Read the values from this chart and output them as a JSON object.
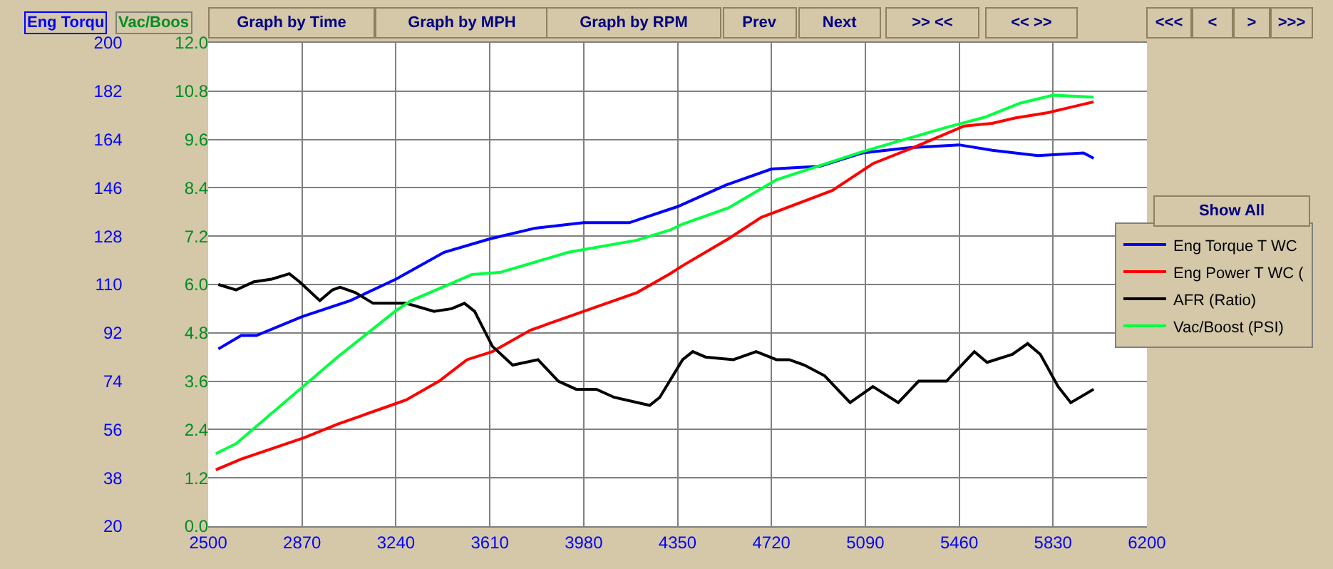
{
  "chart_data": {
    "type": "line",
    "ylabel": "Eng Torqu",
    "y2label": "Vac/Boos",
    "xlim": [
      2500,
      6200
    ],
    "xticks": [
      2500,
      2870,
      3240,
      3610,
      3980,
      4350,
      4720,
      5090,
      5460,
      5830,
      6200
    ],
    "ylim": [
      20,
      200
    ],
    "yticks": [
      20,
      38,
      56,
      74,
      92,
      110,
      128,
      146,
      164,
      182,
      200
    ],
    "y2lim": [
      0,
      12
    ],
    "y2ticks": [
      {
        "value": 0,
        "label": "0.0"
      },
      1.2,
      2.4,
      3.6,
      4.8,
      {
        "value": 6,
        "label": "6.0"
      },
      7.2,
      8.4,
      9.6,
      10.8,
      {
        "value": 12,
        "label": "12.0"
      }
    ],
    "grid": true,
    "legend": "right",
    "marker": "none",
    "line_style": "solid",
    "series": [
      {
        "name": "Eng Torque T WC",
        "color": "#0000ff",
        "x": [
          2540,
          2630,
          2690,
          2870,
          3060,
          3240,
          3430,
          3610,
          3790,
          3980,
          4160,
          4350,
          4540,
          4720,
          4910,
          5080,
          5270,
          5460,
          5590,
          5770,
          5950,
          5990
        ],
        "values": [
          86,
          91,
          91,
          98,
          104,
          112,
          122,
          127,
          131,
          133,
          133,
          139,
          147,
          153,
          154,
          159,
          161,
          162,
          160,
          158,
          159,
          157
        ]
      },
      {
        "name": "Eng Power T WC (",
        "color": "#ff0000",
        "x": [
          2530,
          2630,
          2880,
          3010,
          3190,
          3280,
          3410,
          3520,
          3620,
          3770,
          4010,
          4190,
          4320,
          4370,
          4550,
          4680,
          4960,
          5120,
          5280,
          5480,
          5590,
          5680,
          5810,
          5900,
          5990
        ],
        "values": [
          41,
          45,
          53,
          58,
          64,
          67,
          74,
          82,
          85,
          93,
          101,
          107,
          114,
          117,
          127,
          135,
          145,
          155,
          161,
          169,
          170,
          172,
          174,
          176,
          178
        ]
      },
      {
        "name": "AFR (Ratio)",
        "color": "#000000",
        "x": [
          2540,
          2610,
          2680,
          2750,
          2820,
          2860,
          2940,
          2990,
          3020,
          3080,
          3150,
          3280,
          3390,
          3460,
          3510,
          3550,
          3620,
          3700,
          3800,
          3880,
          3950,
          4030,
          4100,
          4240,
          4280,
          4370,
          4410,
          4460,
          4570,
          4660,
          4740,
          4790,
          4850,
          4930,
          5030,
          5120,
          5220,
          5300,
          5410,
          5520,
          5570,
          5670,
          5730,
          5780,
          5850,
          5900,
          5990
        ],
        "values": [
          110,
          108,
          111,
          112,
          114,
          111,
          104,
          108,
          109,
          107,
          103,
          103,
          100,
          101,
          103,
          100,
          87,
          80,
          82,
          74,
          71,
          71,
          68,
          65,
          68,
          82,
          85,
          83,
          82,
          85,
          82,
          82,
          80,
          76,
          66,
          72,
          66,
          74,
          74,
          85,
          81,
          84,
          88,
          84,
          72,
          66,
          71
        ]
      },
      {
        "name": "Vac/Boost (PSI)",
        "color": "#00ff40",
        "axis": "y2",
        "x": [
          2530,
          2610,
          2880,
          3010,
          3240,
          3300,
          3540,
          3650,
          3920,
          4190,
          4320,
          4370,
          4550,
          4740,
          5080,
          5410,
          5560,
          5700,
          5830,
          5990
        ],
        "values": [
          1.8,
          2.05,
          3.5,
          4.2,
          5.35,
          5.6,
          6.25,
          6.3,
          6.8,
          7.1,
          7.35,
          7.5,
          7.9,
          8.6,
          9.3,
          9.9,
          10.15,
          10.5,
          10.7,
          10.65
        ]
      }
    ],
    "annotations": [
      "Graph by Time",
      "Graph by MPH",
      "Graph by RPM",
      "Prev",
      "Next",
      ">> <<",
      "<< >>",
      "<<<",
      "<",
      ">",
      ">>>",
      "Show All"
    ]
  }
}
